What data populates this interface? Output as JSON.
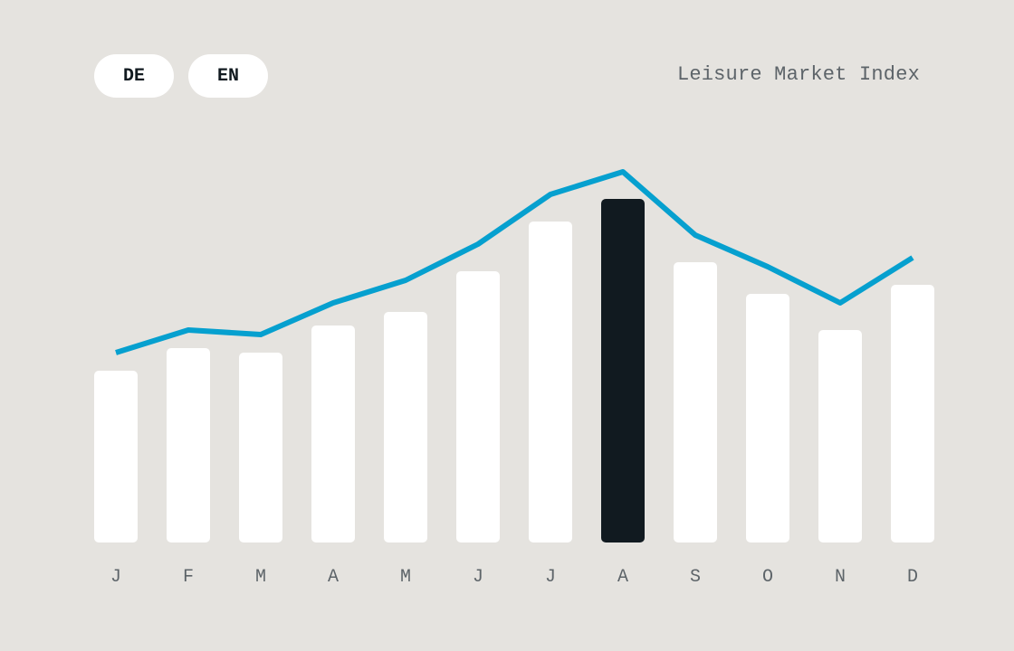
{
  "toggle": {
    "items": [
      {
        "label": "DE"
      },
      {
        "label": "EN"
      }
    ]
  },
  "chart_data": {
    "type": "bar",
    "title": "Leisure Market Index",
    "categories": [
      "J",
      "F",
      "M",
      "A",
      "M",
      "J",
      "J",
      "A",
      "S",
      "O",
      "N",
      "D"
    ],
    "series": [
      {
        "type": "bar",
        "values": [
          38,
          43,
          42,
          48,
          51,
          60,
          71,
          76,
          62,
          55,
          47,
          57
        ]
      },
      {
        "type": "line",
        "values": [
          42,
          47,
          46,
          53,
          58,
          66,
          77,
          82,
          68,
          61,
          53,
          63
        ]
      }
    ],
    "highlight_index": 7,
    "ylim": [
      0,
      100
    ],
    "grid": false,
    "colors": {
      "bar": "#ffffff",
      "bar_highlight": "#111a20",
      "line": "#06a0cf",
      "tick": "#5d6469",
      "background": "#e5e3df"
    }
  }
}
